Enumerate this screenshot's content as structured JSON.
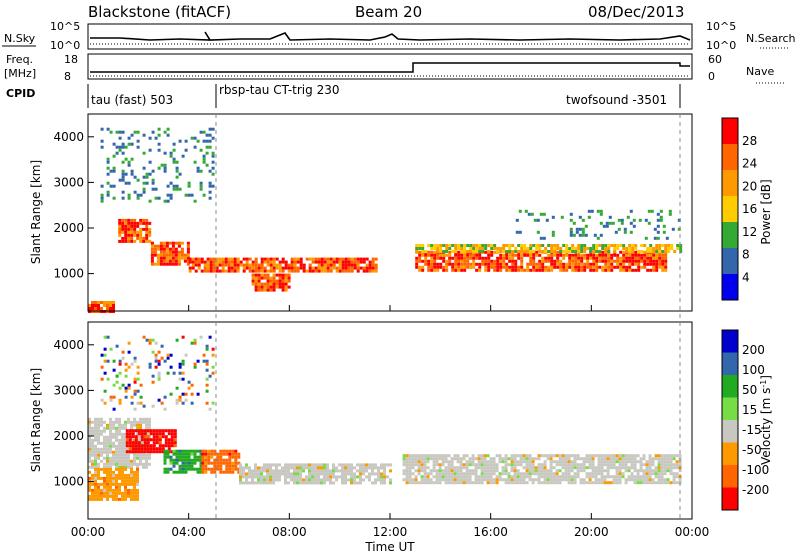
{
  "header": {
    "station": "Blackstone (fitACF)",
    "beam": "Beam 20",
    "date": "08/Dec/2013"
  },
  "left_labels": {
    "nsky": "N.Sky",
    "freq_line1": "Freq.",
    "freq_line2": "[MHz]",
    "cpid": "CPID"
  },
  "right_labels": {
    "nsearch": "N.Search",
    "nave": "Nave"
  },
  "mini_axes": {
    "noise_left_ticks": [
      "10^5",
      "10^0"
    ],
    "noise_right_ticks": [
      "10^5",
      "10^0"
    ],
    "freq_left_ticks": [
      "18",
      "8"
    ],
    "freq_right_ticks": [
      "60",
      "0"
    ]
  },
  "cpid_segments": [
    {
      "label": "tau (fast) 503",
      "start_hour": 0.0
    },
    {
      "label": "rbsp-tau CT-trig 230",
      "start_hour": 5.0
    },
    {
      "label": "twofsound -3501",
      "start_hour": 23.5
    }
  ],
  "chart_data": [
    {
      "type": "heatmap",
      "name": "power",
      "xlabel": "",
      "ylabel": "Slant Range [km]",
      "xlim": [
        0,
        24
      ],
      "ylim": [
        180,
        4500
      ],
      "yticks": [
        1000,
        2000,
        3000,
        4000
      ],
      "colorbar": {
        "label": "Power [dB]",
        "ticks": [
          "28",
          "24",
          "20",
          "16",
          "12",
          "8",
          "4"
        ],
        "colors": [
          "#ff0000",
          "#ff6600",
          "#ff9900",
          "#ffcc00",
          "#33aa33",
          "#3366aa",
          "#0000ee"
        ]
      },
      "bands": [
        {
          "hours": [
            0.0,
            1.0
          ],
          "range_km": [
            180,
            400
          ],
          "level": "high"
        },
        {
          "hours": [
            1.2,
            2.5
          ],
          "range_km": [
            1700,
            2200
          ],
          "level": "high"
        },
        {
          "hours": [
            2.5,
            4.0
          ],
          "range_km": [
            1200,
            1700
          ],
          "level": "high"
        },
        {
          "hours": [
            4.0,
            11.5
          ],
          "range_km": [
            1050,
            1350
          ],
          "level": "high"
        },
        {
          "hours": [
            6.5,
            8.0
          ],
          "range_km": [
            650,
            1000
          ],
          "level": "high"
        },
        {
          "hours": [
            13.0,
            23.0
          ],
          "range_km": [
            1050,
            1500
          ],
          "level": "high"
        },
        {
          "hours": [
            13.0,
            23.5
          ],
          "range_km": [
            1500,
            1650
          ],
          "level": "medium"
        },
        {
          "hours": [
            0.5,
            5.0
          ],
          "range_km": [
            2600,
            4200
          ],
          "level": "low"
        },
        {
          "hours": [
            17.0,
            23.5
          ],
          "range_km": [
            1800,
            2400
          ],
          "level": "low"
        }
      ]
    },
    {
      "type": "heatmap",
      "name": "velocity",
      "xlabel": "Time UT",
      "ylabel": "Slant Range [km]",
      "xlim": [
        0,
        24
      ],
      "ylim": [
        180,
        4500
      ],
      "xticks": [
        "00:00",
        "04:00",
        "08:00",
        "12:00",
        "16:00",
        "20:00",
        "00:00"
      ],
      "yticks": [
        1000,
        2000,
        3000,
        4000
      ],
      "colorbar": {
        "label": "Velocity [m s^-1]",
        "ticks": [
          "200",
          "100",
          "50",
          "15",
          "-15",
          "-50",
          "-100",
          "-200"
        ],
        "colors": [
          "#0000cc",
          "#3366aa",
          "#22aa22",
          "#77dd44",
          "#c8c8c0",
          "#ff9900",
          "#ff6600",
          "#ff0000"
        ]
      },
      "bands": [
        {
          "hours": [
            0.0,
            2.5
          ],
          "range_km": [
            1300,
            2400
          ],
          "value": "grey"
        },
        {
          "hours": [
            1.5,
            3.5
          ],
          "range_km": [
            1650,
            2150
          ],
          "value": "-200"
        },
        {
          "hours": [
            3.0,
            4.5
          ],
          "range_km": [
            1200,
            1700
          ],
          "value": "50"
        },
        {
          "hours": [
            4.5,
            6.0
          ],
          "range_km": [
            1200,
            1700
          ],
          "value": "-100"
        },
        {
          "hours": [
            6.0,
            12.0
          ],
          "range_km": [
            1000,
            1400
          ],
          "value": "grey"
        },
        {
          "hours": [
            12.5,
            23.5
          ],
          "range_km": [
            1000,
            1600
          ],
          "value": "grey"
        },
        {
          "hours": [
            0.0,
            2.0
          ],
          "range_km": [
            600,
            1300
          ],
          "value": "-50"
        },
        {
          "hours": [
            0.5,
            5.0
          ],
          "range_km": [
            2600,
            4200
          ],
          "value": "mixed"
        }
      ]
    }
  ]
}
